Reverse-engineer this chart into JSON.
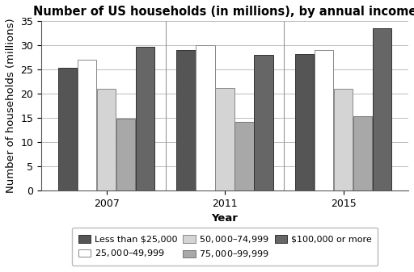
{
  "title": "Number of US households (in millions), by annual income",
  "xlabel": "Year",
  "ylabel": "Number of households (millions)",
  "years": [
    "2007",
    "2011",
    "2015"
  ],
  "categories": [
    "Less than $25,000",
    "$25,000–$49,999",
    "$50,000–$74,999",
    "$75,000–$99,999",
    "$100,000 or more"
  ],
  "values": {
    "Less than $25,000": [
      25.3,
      29.0,
      28.1
    ],
    "$25,000–$49,999": [
      27.0,
      30.0,
      29.0
    ],
    "$50,000–$74,999": [
      21.0,
      21.2,
      21.0
    ],
    "$75,000–$99,999": [
      14.8,
      14.2,
      15.3
    ],
    "$100,000 or more": [
      29.7,
      28.0,
      33.5
    ]
  },
  "colors": [
    "#555555",
    "#ffffff",
    "#d4d4d4",
    "#a8a8a8",
    "#666666"
  ],
  "bar_edge_colors": [
    "#333333",
    "#888888",
    "#888888",
    "#777777",
    "#333333"
  ],
  "ylim": [
    0,
    35
  ],
  "yticks": [
    0,
    5,
    10,
    15,
    20,
    25,
    30,
    35
  ],
  "title_fontsize": 10.5,
  "axis_label_fontsize": 9.5,
  "tick_fontsize": 9,
  "legend_fontsize": 8,
  "background_color": "#ffffff",
  "grid_color": "#bbbbbb"
}
